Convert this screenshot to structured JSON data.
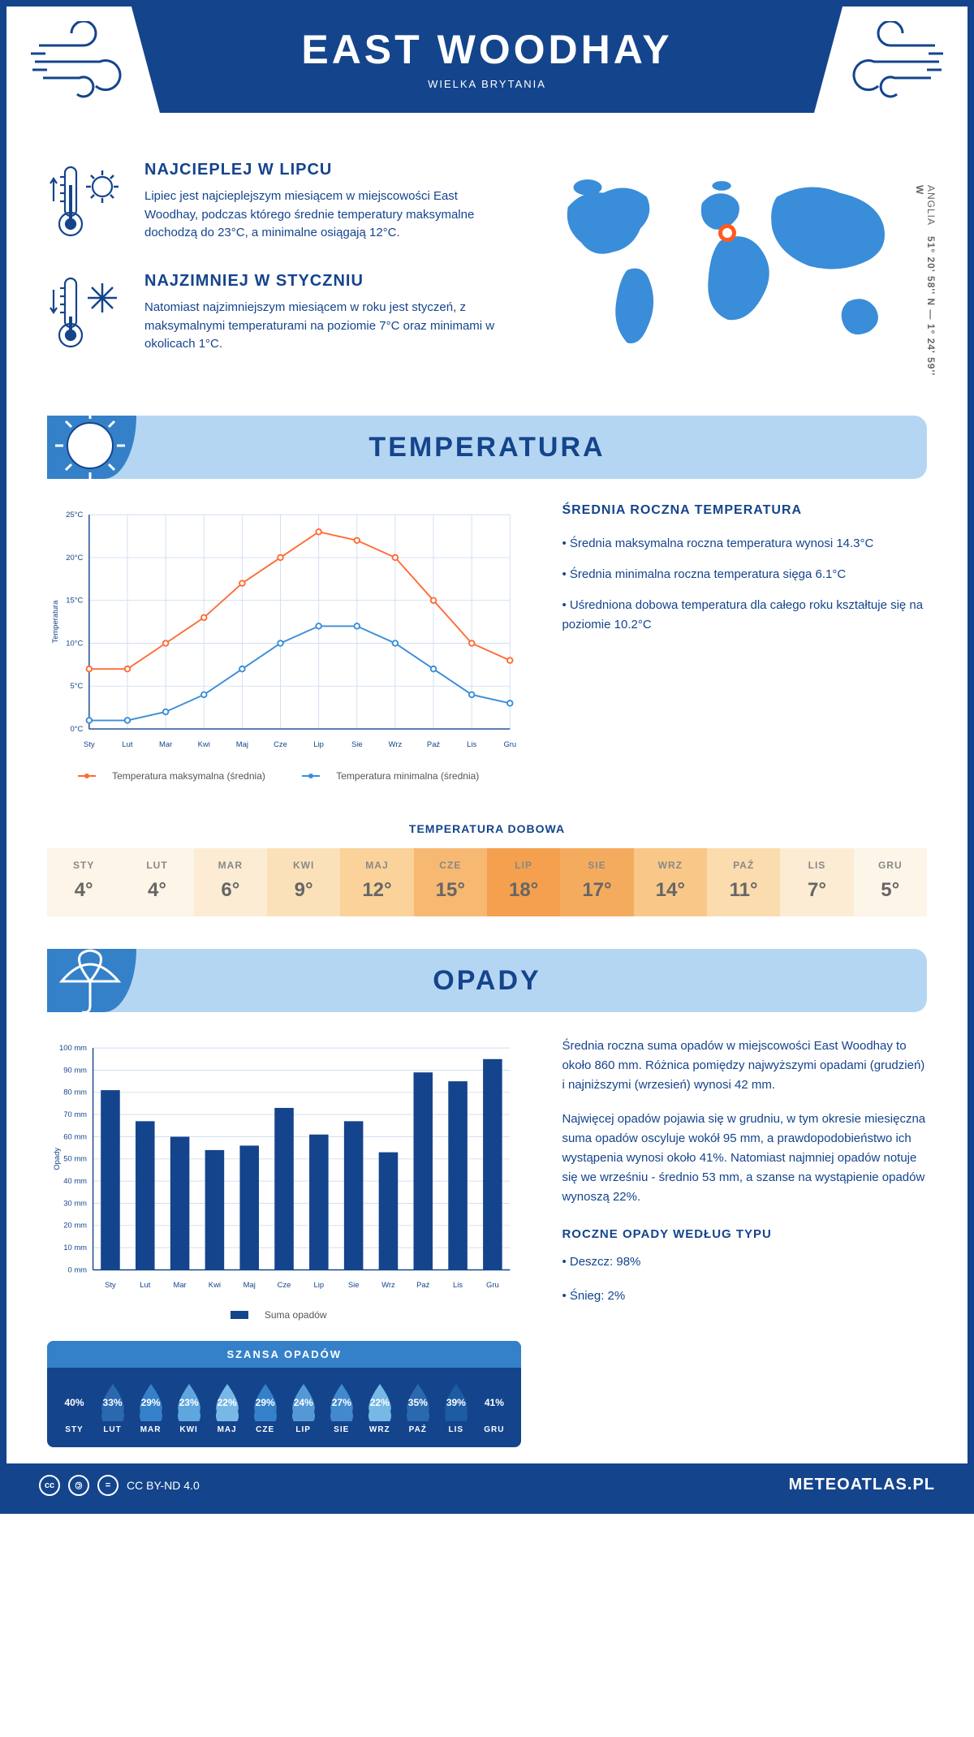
{
  "header": {
    "title": "EAST WOODHAY",
    "subtitle": "WIELKA BRYTANIA"
  },
  "coords": {
    "text": "51° 20' 58'' N — 1° 24' 59'' W",
    "region": "ANGLIA"
  },
  "location_marker": {
    "left_pct": 47,
    "top_pct": 30
  },
  "intro": {
    "warm": {
      "title": "NAJCIEPLEJ W LIPCU",
      "text": "Lipiec jest najcieplejszym miesiącem w miejscowości East Woodhay, podczas którego średnie temperatury maksymalne dochodzą do 23°C, a minimalne osiągają 12°C."
    },
    "cold": {
      "title": "NAJZIMNIEJ W STYCZNIU",
      "text": "Natomiast najzimniejszym miesiącem w roku jest styczeń, z maksymalnymi temperaturami na poziomie 7°C oraz minimami w okolicach 1°C."
    }
  },
  "temp_section": {
    "header": "TEMPERATURA",
    "side_title": "ŚREDNIA ROCZNA TEMPERATURA",
    "side_bullets": [
      "• Średnia maksymalna roczna temperatura wynosi 14.3°C",
      "• Średnia minimalna roczna temperatura sięga 6.1°C",
      "• Uśredniona dobowa temperatura dla całego roku kształtuje się na poziomie 10.2°C"
    ],
    "chart": {
      "type": "line",
      "months": [
        "Sty",
        "Lut",
        "Mar",
        "Kwi",
        "Maj",
        "Cze",
        "Lip",
        "Sie",
        "Wrz",
        "Paź",
        "Lis",
        "Gru"
      ],
      "max_series": {
        "values": [
          7,
          7,
          10,
          13,
          17,
          20,
          23,
          22,
          20,
          15,
          10,
          8
        ],
        "color": "#ff6b35",
        "label": "Temperatura maksymalna (średnia)"
      },
      "min_series": {
        "values": [
          1,
          1,
          2,
          4,
          7,
          10,
          12,
          12,
          10,
          7,
          4,
          3
        ],
        "color": "#3a8dd8",
        "label": "Temperatura minimalna (średnia)"
      },
      "ylabel": "Temperatura",
      "ylim": [
        0,
        25
      ],
      "ytick_step": 5,
      "y_suffix": "°C",
      "grid_color": "#d0dff0",
      "axis_color": "#14448c",
      "label_fontsize": 10
    },
    "daily": {
      "title": "TEMPERATURA DOBOWA",
      "months": [
        "STY",
        "LUT",
        "MAR",
        "KWI",
        "MAJ",
        "CZE",
        "LIP",
        "SIE",
        "WRZ",
        "PAŹ",
        "LIS",
        "GRU"
      ],
      "values": [
        "4°",
        "4°",
        "6°",
        "9°",
        "12°",
        "15°",
        "18°",
        "17°",
        "14°",
        "11°",
        "7°",
        "5°"
      ],
      "cell_colors": [
        "#fdf5e8",
        "#fdf5e8",
        "#fcecd4",
        "#fbe1ba",
        "#fad29a",
        "#f7b872",
        "#f4a04e",
        "#f5ab5e",
        "#f9c888",
        "#fbdcaf",
        "#fcecd4",
        "#fdf5e8"
      ]
    }
  },
  "precip_section": {
    "header": "OPADY",
    "para1": "Średnia roczna suma opadów w miejscowości East Woodhay to około 860 mm. Różnica pomiędzy najwyższymi opadami (grudzień) i najniższymi (wrzesień) wynosi 42 mm.",
    "para2": "Najwięcej opadów pojawia się w grudniu, w tym okresie miesięczna suma opadów oscyluje wokół 95 mm, a prawdopodobieństwo ich wystąpenia wynosi około 41%. Natomiast najmniej opadów notuje się we wrześniu - średnio 53 mm, a szanse na wystąpienie opadów wynoszą 22%.",
    "type_title": "ROCZNE OPADY WEDŁUG TYPU",
    "type_bullets": [
      "• Deszcz: 98%",
      "• Śnieg: 2%"
    ],
    "chart": {
      "type": "bar",
      "months": [
        "Sty",
        "Lut",
        "Mar",
        "Kwi",
        "Maj",
        "Cze",
        "Lip",
        "Sie",
        "Wrz",
        "Paź",
        "Lis",
        "Gru"
      ],
      "values": [
        81,
        67,
        60,
        54,
        56,
        73,
        61,
        67,
        53,
        89,
        85,
        95
      ],
      "bar_color": "#14448c",
      "label": "Suma opadów",
      "ylabel": "Opady",
      "ylim": [
        0,
        100
      ],
      "ytick_step": 10,
      "y_suffix": " mm",
      "grid_color": "#d0dff0",
      "axis_color": "#14448c",
      "bar_width": 0.55
    },
    "chance": {
      "title": "SZANSA OPADÓW",
      "months": [
        "STY",
        "LUT",
        "MAR",
        "KWI",
        "MAJ",
        "CZE",
        "LIP",
        "SIE",
        "WRZ",
        "PAŹ",
        "LIS",
        "GRU"
      ],
      "values": [
        "40%",
        "33%",
        "29%",
        "23%",
        "22%",
        "29%",
        "24%",
        "27%",
        "22%",
        "35%",
        "39%",
        "41%"
      ],
      "drop_colors": [
        "#14448c",
        "#2a68b0",
        "#3581c9",
        "#5ea6de",
        "#78b8e6",
        "#3581c9",
        "#5499d6",
        "#4289cd",
        "#78b8e6",
        "#2a68b0",
        "#1d5ba3",
        "#14448c"
      ]
    }
  },
  "footer": {
    "license": "CC BY-ND 4.0",
    "site": "METEOATLAS.PL"
  }
}
